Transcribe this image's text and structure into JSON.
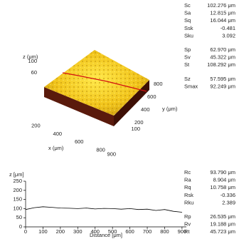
{
  "surface_params": [
    [
      [
        "Sc",
        "102.276 μm"
      ],
      [
        "Sa",
        "12.815 μm"
      ],
      [
        "Sq",
        "16.044 μm"
      ],
      [
        "Ssk",
        "-0.481"
      ],
      [
        "Sku",
        "3.092"
      ]
    ],
    [
      [
        "Sp",
        "62.970 μm"
      ],
      [
        "Sv",
        "45.322 μm"
      ],
      [
        "St",
        "108.292 μm"
      ]
    ],
    [
      [
        "Sz",
        "57.595 μm"
      ],
      [
        "Smax",
        "92.249 μm"
      ]
    ]
  ],
  "surface_3d": {
    "x_label": "x (μm)",
    "y_label": "y (μm)",
    "z_label": "z (μm)",
    "xticks": [
      200,
      400,
      600,
      800,
      900
    ],
    "yticks": [
      100,
      200,
      400,
      600,
      800
    ],
    "zticks": [
      100,
      60
    ]
  },
  "chart_data": {
    "type": "line",
    "y_label": "z [μm]",
    "x_label": "Distance [μm]",
    "color": "#000000",
    "x": [
      0,
      50,
      100,
      150,
      200,
      250,
      300,
      350,
      400,
      450,
      500,
      550,
      600,
      650,
      700,
      750,
      800,
      850,
      900
    ],
    "values": [
      95,
      105,
      110,
      107,
      103,
      102,
      100,
      103,
      98,
      101,
      100,
      97,
      100,
      95,
      97,
      90,
      95,
      85,
      80
    ],
    "xlim": [
      0,
      925
    ],
    "ylim": [
      0,
      250
    ],
    "xticks": [
      0,
      100,
      200,
      300,
      400,
      500,
      600,
      700,
      800,
      900
    ],
    "yticks": [
      0,
      50,
      100,
      150,
      200,
      250
    ]
  },
  "profile_params": [
    [
      [
        "Rc",
        "93.790 μm"
      ],
      [
        "Ra",
        "8.904 μm"
      ],
      [
        "Rq",
        "10.758 μm"
      ],
      [
        "Rsk",
        "-0.336"
      ],
      [
        "Rku",
        "2.389"
      ]
    ],
    [
      [
        "Rp",
        "26.535 μm"
      ],
      [
        "Rv",
        "19.188 μm"
      ],
      [
        "Rt",
        "45.723 μm"
      ]
    ]
  ]
}
